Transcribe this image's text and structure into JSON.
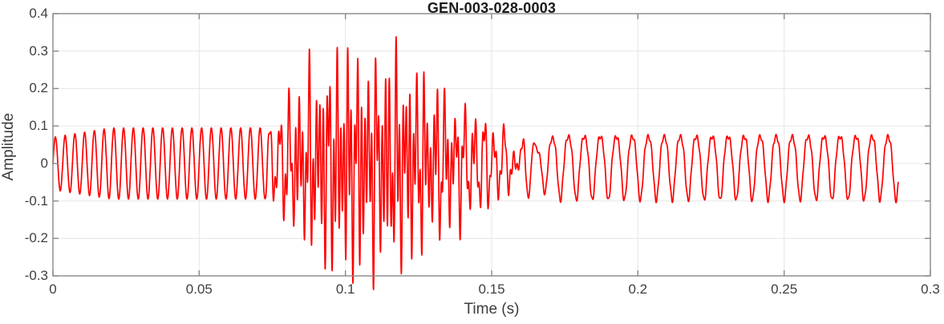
{
  "chart_data": {
    "type": "line",
    "title": "GEN-003-028-0003",
    "xlabel": "Time (s)",
    "ylabel": "Amplitude",
    "xlim": [
      0,
      0.3
    ],
    "ylim": [
      -0.3,
      0.4
    ],
    "xticks": [
      0,
      0.05,
      0.1,
      0.15,
      0.2,
      0.25,
      0.3
    ],
    "xtick_labels": [
      "0",
      "0.05",
      "0.1",
      "0.15",
      "0.2",
      "0.25",
      "0.3"
    ],
    "yticks": [
      -0.3,
      -0.2,
      -0.1,
      0,
      0.1,
      0.2,
      0.3,
      0.4
    ],
    "ytick_labels": [
      "-0.3",
      "-0.2",
      "-0.1",
      "0",
      "0.1",
      "0.2",
      "0.3",
      "0.4"
    ],
    "grid": true,
    "legend": "none",
    "line_color": "#ff0000",
    "axis_color": "#898989",
    "grid_color": "#e6e6e6",
    "tick_label_color": "#404040",
    "axis_label_color": "#3c3c3c",
    "title_color": "#1a1a1a",
    "signal": {
      "description": "Steady ~300 Hz oscillation of amplitude ~0.095 from 0 to ~0.072 s; broadband burst between ~0.072 s and ~0.15 s reaching max ~+0.33 near t=0.10 s and min ~-0.29 near t=0.117 s; settles into a ~183 Hz oscillation with flattened tops (+0.07) and sharper troughs (-0.10) until the trace ends at ~0.289 s",
      "t_end": 0.289,
      "sample_rate_hz": 18000,
      "head": {
        "freq_hz": 300,
        "amp_start": 0.07,
        "amp": 0.095,
        "ramp_end_s": 0.02,
        "fade_start_s": 0.146,
        "fade_end_s": 0.17
      },
      "burst": {
        "envelope": [
          [
            0.072,
            0
          ],
          [
            0.079,
            0.06
          ],
          [
            0.086,
            0.12
          ],
          [
            0.094,
            0.155
          ],
          [
            0.101,
            0.175
          ],
          [
            0.109,
            0.155
          ],
          [
            0.117,
            0.165
          ],
          [
            0.126,
            0.125
          ],
          [
            0.134,
            0.09
          ],
          [
            0.142,
            0.055
          ],
          [
            0.152,
            0.028
          ],
          [
            0.166,
            0
          ]
        ],
        "components": [
          {
            "freq_hz": 845,
            "weight": 1.0,
            "phase": 0.7
          },
          {
            "freq_hz": 433,
            "weight": 0.5,
            "phase": 2.2
          },
          {
            "freq_hz": 612,
            "weight": 0.3,
            "phase": 4.0
          }
        ]
      },
      "tail": {
        "freq_hz": 183,
        "amp": 0.085,
        "second_harmonic": 0.16,
        "ripple_freq_hz": 890,
        "ripple_amp": 0.006,
        "fade_in_start_s": 0.148,
        "fade_in_end_s": 0.172
      }
    }
  }
}
